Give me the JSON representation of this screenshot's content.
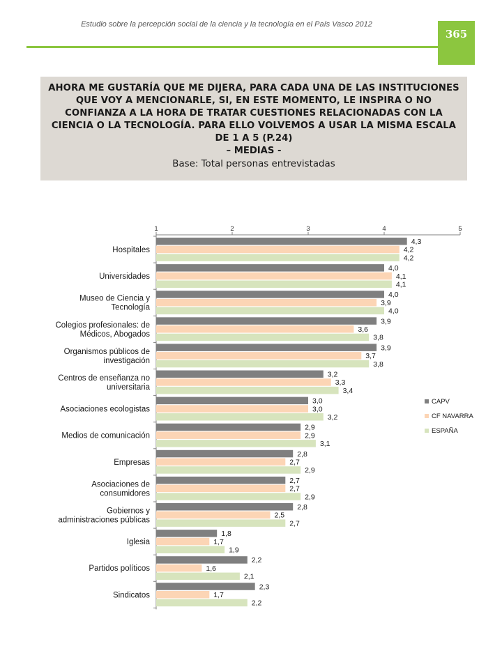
{
  "document": {
    "running_header": "Estudio sobre la percepción social de la ciencia y la tecnología en el País Vasco 2012",
    "page_number": "365",
    "accent_color": "#8cc63f"
  },
  "title_box": {
    "question": "AHORA ME GUSTARÍA QUE ME DIJERA, PARA CADA UNA DE LAS INSTITUCIONES QUE VOY A MENCIONARLE, SI, EN ESTE MOMENTO, LE INSPIRA O NO CONFIANZA A LA HORA DE TRATAR CUESTIONES RELACIONADAS CON LA CIENCIA O LA TECNOLOGÍA. PARA ELLO VOLVEMOS A USAR LA MISMA ESCALA DE 1 A 5 (P.24)",
    "subtitle": "– MEDIAS -",
    "base": "Base: Total personas entrevistadas"
  },
  "chart_data": {
    "type": "bar",
    "orientation": "horizontal",
    "x_axis": {
      "min": 1,
      "max": 5,
      "ticks": [
        "1",
        "2",
        "3",
        "4",
        "5"
      ],
      "position": "top"
    },
    "grid": false,
    "legend_position": "right",
    "categories": [
      [
        "Hospitales"
      ],
      [
        "Universidades"
      ],
      [
        "Museo de Ciencia y",
        "Tecnología"
      ],
      [
        "Colegios profesionales: de",
        "Médicos, Abogados"
      ],
      [
        "Organismos públicos de",
        "investigación"
      ],
      [
        "Centros de enseñanza no",
        "universitaria"
      ],
      [
        "Asociaciones ecologistas"
      ],
      [
        "Medios de comunicación"
      ],
      [
        "Empresas"
      ],
      [
        "Asociaciones de",
        "consumidores"
      ],
      [
        "Gobiernos y",
        "administraciones públicas"
      ],
      [
        "Iglesia"
      ],
      [
        "Partidos políticos"
      ],
      [
        "Sindicatos"
      ]
    ],
    "series": [
      {
        "name": "CAPV",
        "color": "#7f7f7f",
        "values": [
          4.3,
          4.0,
          4.0,
          3.9,
          3.9,
          3.2,
          3.0,
          2.9,
          2.8,
          2.7,
          2.8,
          1.8,
          2.2,
          2.3
        ],
        "labels": [
          "4,3",
          "4,0",
          "4,0",
          "3,9",
          "3,9",
          "3,2",
          "3,0",
          "2,9",
          "2,8",
          "2,7",
          "2,8",
          "1,8",
          "2,2",
          "2,3"
        ]
      },
      {
        "name": "CF NAVARRA",
        "color": "#fcd5b5",
        "values": [
          4.2,
          4.1,
          3.9,
          3.6,
          3.7,
          3.3,
          3.0,
          2.9,
          2.7,
          2.7,
          2.5,
          1.7,
          1.6,
          1.7
        ],
        "labels": [
          "4,2",
          "4,1",
          "3,9",
          "3,6",
          "3,7",
          "3,3",
          "3,0",
          "2,9",
          "2,7",
          "2,7",
          "2,5",
          "1,7",
          "1,6",
          "1,7"
        ]
      },
      {
        "name": "ESPAÑA",
        "color": "#d7e4bd",
        "values": [
          4.2,
          4.1,
          4.0,
          3.8,
          3.8,
          3.4,
          3.2,
          3.1,
          2.9,
          2.9,
          2.7,
          1.9,
          2.1,
          2.2
        ],
        "labels": [
          "4,2",
          "4,1",
          "4,0",
          "3,8",
          "3,8",
          "3,4",
          "3,2",
          "3,1",
          "2,9",
          "2,9",
          "2,7",
          "1,9",
          "2,1",
          "2,2"
        ]
      }
    ]
  }
}
